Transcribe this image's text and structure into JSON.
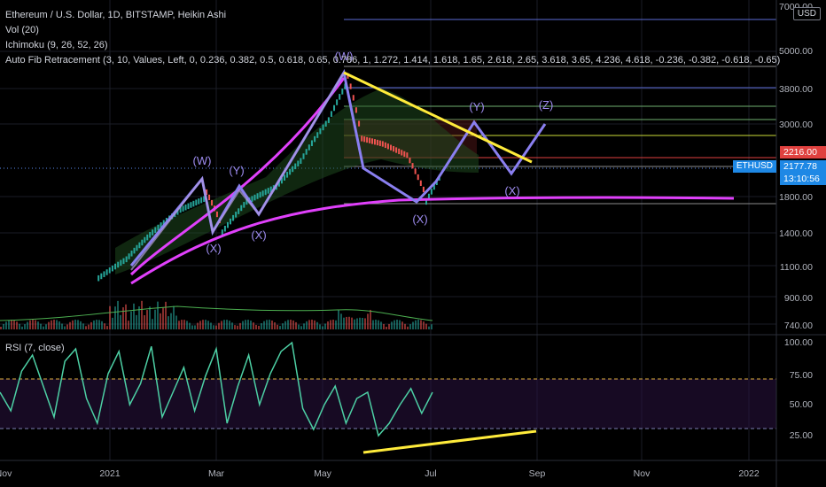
{
  "header": {
    "symbol_title": "Ethereum / U.S. Dollar, 1D, BITSTAMP, Heikin Ashi",
    "vol": "Vol (20)",
    "ichimoku": "Ichimoku (9, 26, 52, 26)",
    "fib": "Auto Fib Retracement (3, 10, Values, Left, 0, 0.236, 0.382, 0.5, 0.618, 0.65, 0.786, 1, 1.272, 1.414, 1.618, 1.65, 2.618, 2.65, 3.618, 3.65, 4.236, 4.618, -0.236, -0.382, -0.618, -0.65)"
  },
  "rsi_title": "RSI (7, close)",
  "currency_button": "USD",
  "price_axis": [
    "7000.00",
    "5000.00",
    "3800.00",
    "3000.00",
    "1800.00",
    "1400.00",
    "1100.00",
    "900.00",
    "740.00"
  ],
  "rsi_axis": [
    "100.00",
    "75.00",
    "50.00",
    "25.00"
  ],
  "time_axis": [
    "Nov",
    "2021",
    "Mar",
    "May",
    "Jul",
    "Sep",
    "Nov",
    "2022"
  ],
  "price_tags": {
    "level": "2216.00",
    "ticker": "ETHUSD",
    "last": "2177.78",
    "countdown": "13:10:56"
  },
  "wave_labels": [
    "(W)",
    "(X)",
    "(Y)",
    "(X)",
    "(W)",
    "(X)",
    "(Y)",
    "(X)",
    "(Z)"
  ],
  "chart_data": {
    "type": "line",
    "series": [
      {
        "values": [
          {
            "x": "2020-12-20",
            "y": 1050
          },
          {
            "x": "2021-01-05",
            "y": 1200
          },
          {
            "x": "2021-01-20",
            "y": 1450
          },
          {
            "x": "2021-02-05",
            "y": 1700
          },
          {
            "x": "2021-02-20",
            "y": 1850
          },
          {
            "x": "2021-03-01",
            "y": 1450
          },
          {
            "x": "2021-03-15",
            "y": 1800
          },
          {
            "x": "2021-04-01",
            "y": 2000
          },
          {
            "x": "2021-04-15",
            "y": 2400
          },
          {
            "x": "2021-05-01",
            "y": 3200
          },
          {
            "x": "2021-05-12",
            "y": 4200
          },
          {
            "x": "2021-05-20",
            "y": 2700
          },
          {
            "x": "2021-06-01",
            "y": 2600
          },
          {
            "x": "2021-06-15",
            "y": 2400
          },
          {
            "x": "2021-06-26",
            "y": 1800
          },
          {
            "x": "2021-07-05",
            "y": 2200
          }
        ]
      }
    ],
    "rsi_values": [
      55,
      40,
      72,
      85,
      60,
      35,
      80,
      90,
      50,
      30,
      70,
      88,
      45,
      62,
      92,
      35,
      55,
      75,
      40,
      68,
      90,
      30,
      60,
      85,
      45,
      70,
      88,
      95,
      42,
      25,
      45,
      60,
      30,
      50,
      55,
      20,
      30,
      45,
      58,
      38,
      55
    ],
    "ylim": [
      740,
      7000
    ],
    "rsi_ylim": [
      0,
      100
    ],
    "scale": "log",
    "grid": true
  }
}
